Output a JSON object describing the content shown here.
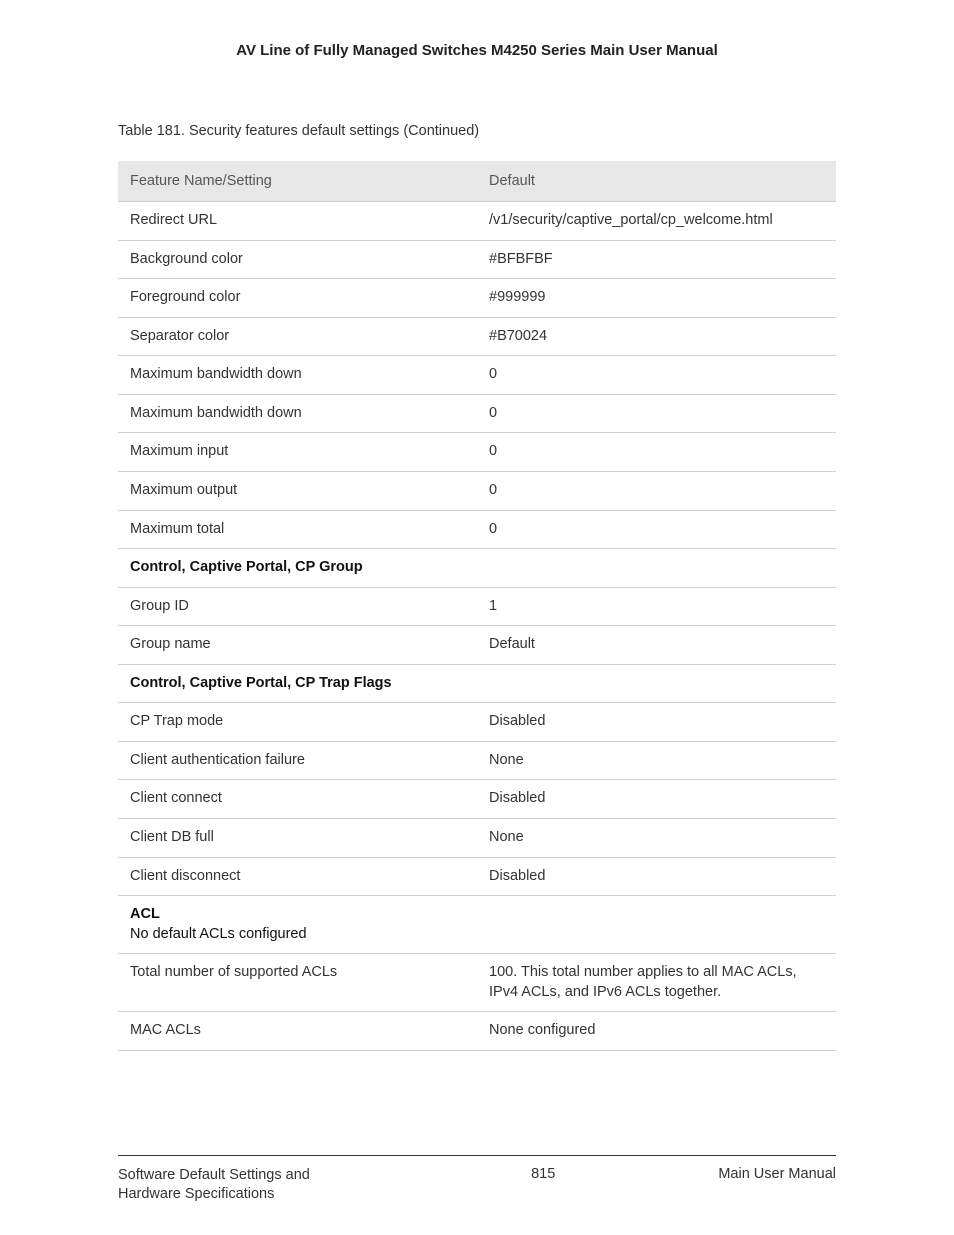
{
  "header": {
    "title": "AV Line of Fully Managed Switches M4250 Series Main User Manual"
  },
  "tableCaption": "Table 181. Security features default settings (Continued)",
  "table": {
    "headers": {
      "setting": "Feature Name/Setting",
      "default": "Default"
    },
    "rows": [
      {
        "type": "data",
        "setting": "Redirect URL",
        "default": "/v1/security/captive_portal/cp_welcome.html"
      },
      {
        "type": "data",
        "setting": "Background color",
        "default": "#BFBFBF"
      },
      {
        "type": "data",
        "setting": "Foreground color",
        "default": "#999999"
      },
      {
        "type": "data",
        "setting": "Separator color",
        "default": "#B70024"
      },
      {
        "type": "data",
        "setting": "Maximum bandwidth down",
        "default": "0"
      },
      {
        "type": "data",
        "setting": "Maximum bandwidth down",
        "default": "0"
      },
      {
        "type": "data",
        "setting": "Maximum input",
        "default": "0"
      },
      {
        "type": "data",
        "setting": "Maximum output",
        "default": "0"
      },
      {
        "type": "data",
        "setting": "Maximum total",
        "default": "0"
      },
      {
        "type": "section",
        "label": "Control, Captive Portal, CP Group"
      },
      {
        "type": "data",
        "setting": "Group ID",
        "default": "1"
      },
      {
        "type": "data",
        "setting": "Group name",
        "default": "Default"
      },
      {
        "type": "section",
        "label": "Control, Captive Portal, CP Trap Flags"
      },
      {
        "type": "data",
        "setting": "CP Trap mode",
        "default": "Disabled"
      },
      {
        "type": "data",
        "setting": "Client authentication failure",
        "default": "None"
      },
      {
        "type": "data",
        "setting": "Client connect",
        "default": "Disabled"
      },
      {
        "type": "data",
        "setting": "Client DB full",
        "default": "None"
      },
      {
        "type": "data",
        "setting": "Client disconnect",
        "default": "Disabled"
      },
      {
        "type": "section",
        "label": "ACL",
        "sub": "No default ACLs configured"
      },
      {
        "type": "data",
        "setting": "Total number of supported ACLs",
        "default": "100. This total number applies to all MAC ACLs, IPv4 ACLs, and IPv6 ACLs together."
      },
      {
        "type": "data",
        "setting": "MAC ACLs",
        "default": "None configured"
      }
    ]
  },
  "footer": {
    "left": "Software Default Settings and Hardware Specifications",
    "pageNumber": "815",
    "right": "Main User Manual"
  }
}
